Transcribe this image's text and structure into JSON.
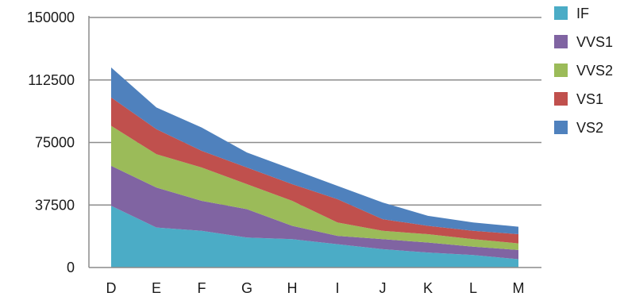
{
  "chart_data": {
    "type": "area",
    "stacked": true,
    "title": "",
    "xlabel": "",
    "ylabel": "",
    "categories": [
      "D",
      "E",
      "F",
      "G",
      "H",
      "I",
      "J",
      "K",
      "L",
      "M"
    ],
    "ylim": [
      0,
      150000
    ],
    "yticks": [
      0,
      37500,
      75000,
      112500,
      150000
    ],
    "ytick_labels": [
      "0",
      "37500",
      "75000",
      "112500",
      "150000"
    ],
    "grid": "horizontal",
    "legend_position": "right",
    "series": [
      {
        "name": "IF",
        "color": "#4bacc6",
        "values": [
          37000,
          24000,
          22000,
          18000,
          17000,
          14000,
          11000,
          9000,
          7500,
          5000
        ]
      },
      {
        "name": "VVS1",
        "color": "#8064a2",
        "values": [
          24000,
          24000,
          18000,
          17000,
          8000,
          5000,
          6000,
          6000,
          5000,
          5500
        ]
      },
      {
        "name": "VVS2",
        "color": "#9bbb59",
        "values": [
          24000,
          20000,
          20000,
          15000,
          15000,
          8000,
          5000,
          5000,
          4500,
          4000
        ]
      },
      {
        "name": "VS1",
        "color": "#c0504d",
        "values": [
          17000,
          15000,
          10000,
          10000,
          10000,
          14000,
          7000,
          5000,
          5000,
          5500
        ]
      },
      {
        "name": "VS2",
        "color": "#4f81bd",
        "values": [
          18000,
          13000,
          14000,
          9000,
          9000,
          8000,
          10000,
          6000,
          5000,
          4500
        ]
      }
    ]
  }
}
